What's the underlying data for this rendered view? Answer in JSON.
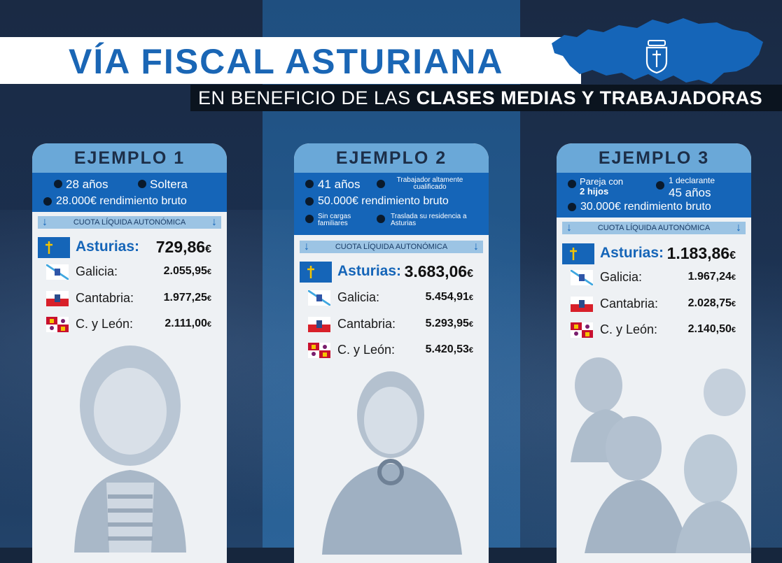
{
  "header": {
    "title": "VÍA FISCAL ASTURIANA",
    "subtitle_normal": "EN BENEFICIO DE LAS ",
    "subtitle_bold": "CLASES MEDIAS Y TRABAJADORAS"
  },
  "colors": {
    "brand_blue": "#1565b8",
    "light_blue": "#6aa8d8",
    "asturias_flag": "#1565b8"
  },
  "quota_label": "CUOTA LÍQUIDA AUTONÓMICA",
  "examples": [
    {
      "title": "EJEMPLO 1",
      "info": {
        "age": "28 años",
        "status": "Soltera",
        "income": "28.000€ rendimiento bruto"
      },
      "rows": [
        {
          "region": "Asturias:",
          "value": "729,86",
          "currency": "€"
        },
        {
          "region": "Galicia:",
          "value": "2.055,95",
          "currency": "€"
        },
        {
          "region": "Cantabria:",
          "value": "1.977,25",
          "currency": "€"
        },
        {
          "region": "C. y León:",
          "value": "2.111,00",
          "currency": "€"
        }
      ]
    },
    {
      "title": "EJEMPLO 2",
      "info": {
        "age": "41 años",
        "job": "Trabajador altamente cualificado",
        "income": "50.000€ rendimiento bruto",
        "family": "Sin cargas familiares",
        "residence": "Traslada su residencia a Asturias"
      },
      "rows": [
        {
          "region": "Asturias:",
          "value": "3.683,06",
          "currency": "€"
        },
        {
          "region": "Galicia:",
          "value": "5.454,91",
          "currency": "€"
        },
        {
          "region": "Cantabria:",
          "value": "5.293,95",
          "currency": "€"
        },
        {
          "region": "C. y León:",
          "value": "5.420,53",
          "currency": "€"
        }
      ]
    },
    {
      "title": "EJEMPLO 3",
      "info": {
        "couple_a": "Pareja con",
        "couple_b": "2 hijos",
        "declarant": "1 declarante",
        "age": "45 años",
        "income": "30.000€ rendimiento bruto"
      },
      "rows": [
        {
          "region": "Asturias:",
          "value": "1.183,86",
          "currency": "€"
        },
        {
          "region": "Galicia:",
          "value": "1.967,24",
          "currency": "€"
        },
        {
          "region": "Cantabria:",
          "value": "2.028,75",
          "currency": "€"
        },
        {
          "region": "C. y León:",
          "value": "2.140,50",
          "currency": "€"
        }
      ]
    }
  ]
}
